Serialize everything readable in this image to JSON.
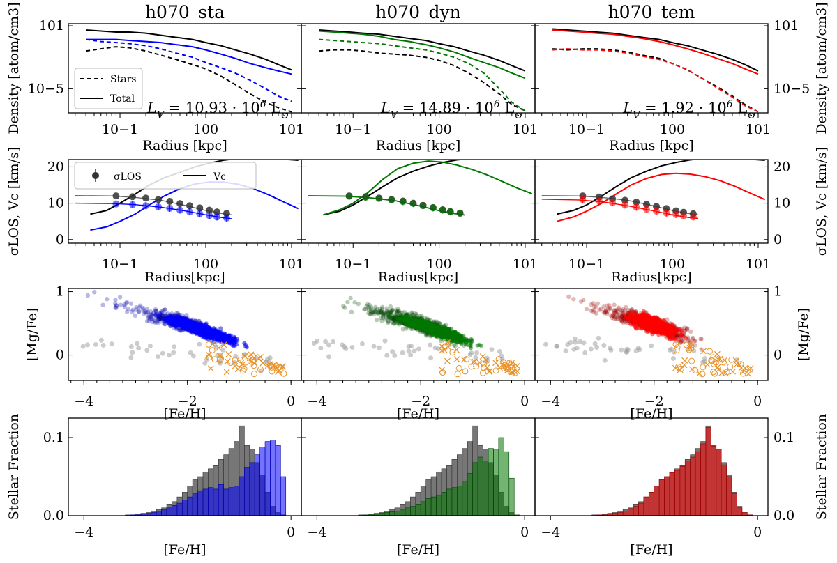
{
  "colors": {
    "sta": "#0000ff",
    "dyn": "#007700",
    "tem": "#ff0000",
    "dwarf_sta": "#0000aa",
    "dwarf_dyn": "#004400",
    "dwarf_tem": "#990000",
    "grey": "#555555",
    "orange": "#e8922a",
    "black": "#000000"
  },
  "columns": [
    {
      "key": "sta",
      "title": "h070_sta",
      "lum_text": "L_V = 10.93 · 10^6 L_⊙",
      "lum_parts": [
        "L",
        "V",
        " = 10.93 · 10",
        "6",
        " L",
        "⊙"
      ]
    },
    {
      "key": "dyn",
      "title": "h070_dyn",
      "lum_text": "L_V = 14.89 · 10^6 L_⊙",
      "lum_parts": [
        "L",
        "V",
        " = 14.89 · 10",
        "6",
        " L",
        "⊙"
      ]
    },
    {
      "key": "tem",
      "title": "h070_tem",
      "lum_text": "L_V = 1.92 · 10^6 L_⊙",
      "lum_parts": [
        "L",
        "V",
        " = 1.92 · 10",
        "6",
        " L",
        "⊙"
      ]
    }
  ],
  "labels": {
    "row1_ylabel": "Density [atom/cm3]",
    "row1_xlabel": "Radius [kpc]",
    "row2_ylabel": "σLOS, Vc [km/s]",
    "row2_xlabel": "Radius[kpc]",
    "row3_ylabel": "[Mg/Fe]",
    "row3_xlabel": "[Fe/H]",
    "row4_ylabel": "Stellar Fraction",
    "row4_xlabel": "[Fe/H]"
  },
  "legends": {
    "row1": [
      "Stars",
      "Total"
    ],
    "row2": [
      "σLOS",
      "Vc"
    ]
  },
  "ticks": {
    "row1_x": [
      "10−1",
      "100",
      "101"
    ],
    "row1_y": [
      "101",
      "10−5"
    ],
    "row2_x": [
      "10−1",
      "100",
      "101"
    ],
    "row2_y": [
      "20",
      "10",
      "0"
    ],
    "row3_x": [
      "−4",
      "−2",
      "0"
    ],
    "row3_y": [
      "1",
      "0"
    ],
    "row4_x": [
      "−4",
      "0"
    ],
    "row4_y": [
      "0.1",
      "0.0"
    ]
  },
  "chart_data": {
    "type": "multi-panel",
    "panels": [
      "density_profile",
      "velocity_profile",
      "MgFe_vs_FeH",
      "FeH_histogram"
    ],
    "density": {
      "xscale": "log",
      "xlim": [
        0.025,
        13
      ],
      "ylim_log10": [
        -7.3,
        1.2
      ],
      "x": [
        0.04,
        0.06,
        0.09,
        0.13,
        0.2,
        0.3,
        0.45,
        0.7,
        1.0,
        1.5,
        2.2,
        3.3,
        5,
        7,
        10
      ],
      "stars_dm": {
        "sta": [
          -1.4,
          -1.2,
          -1.0,
          -1.1,
          -1.4,
          -1.8,
          -2.2,
          -2.7,
          -3.1,
          -3.8,
          -4.6,
          -5.5,
          -6.3,
          -6.8,
          -7.2
        ],
        "dyn": [
          -1.4,
          -1.3,
          -1.3,
          -1.4,
          -1.6,
          -1.7,
          -1.8,
          -2.0,
          -2.3,
          -2.8,
          -3.5,
          -4.4,
          -5.5,
          -6.5,
          -7.1
        ],
        "tem": [
          -1.2,
          -1.3,
          -1.2,
          -1.2,
          -1.3,
          -1.5,
          -1.8,
          -2.1,
          -2.6,
          -3.2,
          -4.0,
          -4.8,
          -5.7,
          -6.5,
          -7.2
        ]
      },
      "stars_col": {
        "sta": [
          -0.3,
          -0.5,
          -0.6,
          -0.7,
          -0.9,
          -1.2,
          -1.6,
          -2.0,
          -2.5,
          -3.0,
          -3.5,
          -4.2,
          -5.0,
          -5.7,
          -6.2
        ],
        "dyn": [
          -0.3,
          -0.4,
          -0.5,
          -0.6,
          -0.7,
          -0.9,
          -1.1,
          -1.3,
          -1.6,
          -2.0,
          -2.6,
          -3.5,
          -5.0,
          -6.3,
          -7.1
        ],
        "tem": [
          -1.3,
          -1.2,
          -1.3,
          -1.3,
          -1.4,
          -1.6,
          -1.9,
          -2.2,
          -2.6,
          -3.2,
          -4.0,
          -4.9,
          -5.8,
          -6.6,
          -7.2
        ]
      },
      "total_dm": {
        "sta": [
          0.6,
          0.5,
          0.4,
          0.4,
          0.3,
          0.1,
          -0.1,
          -0.3,
          -0.6,
          -0.9,
          -1.3,
          -1.7,
          -2.2,
          -2.7,
          -3.2
        ],
        "dyn": [
          0.6,
          0.5,
          0.4,
          0.3,
          0.2,
          0.0,
          -0.2,
          -0.4,
          -0.7,
          -1.0,
          -1.4,
          -1.8,
          -2.3,
          -2.8,
          -3.3
        ],
        "tem": [
          0.7,
          0.6,
          0.5,
          0.4,
          0.3,
          0.1,
          -0.1,
          -0.3,
          -0.6,
          -0.9,
          -1.3,
          -1.7,
          -2.2,
          -2.7,
          -3.3
        ]
      },
      "total_col": {
        "sta": [
          -0.3,
          -0.3,
          -0.3,
          -0.4,
          -0.5,
          -0.6,
          -0.8,
          -1.0,
          -1.3,
          -1.7,
          -2.1,
          -2.6,
          -3.0,
          -3.3,
          -3.6
        ],
        "dyn": [
          0.5,
          0.4,
          0.3,
          0.2,
          0.0,
          -0.3,
          -0.5,
          -0.8,
          -1.1,
          -1.5,
          -2.0,
          -2.5,
          -3.0,
          -3.5,
          -4.0
        ],
        "tem": [
          0.6,
          0.5,
          0.4,
          0.3,
          0.2,
          0.0,
          -0.2,
          -0.5,
          -0.8,
          -1.2,
          -1.6,
          -2.1,
          -2.6,
          -3.1,
          -3.6
        ]
      }
    },
    "velocity": {
      "xscale": "log",
      "xlim": [
        0.025,
        13
      ],
      "ylim": [
        -1,
        22
      ],
      "x": [
        0.045,
        0.07,
        0.1,
        0.15,
        0.22,
        0.33,
        0.5,
        0.75,
        1.1,
        1.6,
        2.4,
        3.6,
        5.4,
        8,
        12
      ],
      "vc_dm": {
        "sta": [
          7,
          8,
          10,
          12.5,
          15,
          17,
          18.5,
          20,
          21,
          21.8,
          22.3,
          22.4,
          22.3,
          22.1,
          21.8
        ],
        "dyn": [
          6.8,
          7.8,
          9.5,
          12,
          14.5,
          17,
          18.8,
          20.2,
          21.2,
          21.9,
          22.3,
          22.4,
          22.3,
          22.2,
          22
        ],
        "tem": [
          7,
          8,
          9.5,
          12,
          14.5,
          17,
          18.8,
          20.3,
          21.2,
          21.9,
          22.3,
          22.4,
          22.3,
          22.1,
          21.8
        ]
      },
      "vc_col": {
        "sta": [
          2.6,
          3.5,
          5,
          7,
          9.5,
          12,
          14,
          15.3,
          15.8,
          15.8,
          15.2,
          14,
          12.3,
          10.4,
          8.5
        ],
        "dyn": [
          6.8,
          8.2,
          10,
          13,
          16.5,
          19.5,
          21,
          21.6,
          21.3,
          20.5,
          19.3,
          17.8,
          16,
          14.2,
          12.6
        ],
        "tem": [
          5,
          6.2,
          7.8,
          10,
          12.5,
          15,
          16.8,
          17.9,
          18.2,
          18,
          17.3,
          16.2,
          14.6,
          12.8,
          11
        ]
      },
      "sigma_points_x": [
        0.09,
        0.14,
        0.2,
        0.28,
        0.38,
        0.5,
        0.65,
        0.85,
        1.1,
        1.35,
        1.75
      ],
      "sigma_dm": {
        "sta": [
          12.0,
          11.8,
          11.4,
          11.0,
          10.5,
          9.9,
          9.3,
          8.7,
          8.1,
          7.6,
          7.2
        ],
        "dyn": [
          12.0,
          11.8,
          11.4,
          11.0,
          10.6,
          10.0,
          9.4,
          8.8,
          8.2,
          7.7,
          7.3
        ],
        "tem": [
          12.0,
          11.7,
          11.2,
          10.8,
          10.3,
          9.7,
          9.1,
          8.5,
          7.9,
          7.5,
          7.1
        ]
      },
      "sigma_col": {
        "sta": [
          9.8,
          9.6,
          9.3,
          9.0,
          8.6,
          8.1,
          7.6,
          7.1,
          6.6,
          6.2,
          5.9
        ],
        "dyn": [
          11.9,
          11.6,
          11.3,
          10.9,
          10.4,
          9.9,
          9.3,
          8.7,
          8.1,
          7.6,
          7.2
        ],
        "tem": [
          11.0,
          10.6,
          10.1,
          9.5,
          8.9,
          8.3,
          7.8,
          7.3,
          6.9,
          6.5,
          6.2
        ]
      },
      "sigma_model_x": [
        0.03,
        0.08,
        0.15,
        0.3,
        0.6,
        1.0,
        1.5,
        2.0
      ],
      "sigma_model_dm": [
        12.1,
        12.0,
        11.6,
        10.8,
        9.3,
        8.0,
        7.2,
        6.8
      ],
      "sigma_model_col": {
        "sta": [
          10.0,
          9.9,
          9.6,
          8.9,
          7.8,
          6.8,
          6.1,
          5.7
        ],
        "dyn": [
          12.0,
          11.9,
          11.5,
          10.7,
          9.2,
          7.9,
          7.1,
          6.7
        ],
        "tem": [
          11.1,
          10.9,
          10.4,
          9.3,
          7.9,
          6.8,
          6.1,
          5.8
        ]
      }
    },
    "chem": {
      "xlim": [
        -4.3,
        0.2
      ],
      "ylim": [
        -0.4,
        1.05
      ],
      "trend_feh": [
        -4.0,
        -3.5,
        -3.0,
        -2.5,
        -2.0,
        -1.5,
        -1.0,
        -0.5,
        -0.2
      ],
      "trend_mgfe": [
        0.95,
        0.85,
        0.72,
        0.6,
        0.48,
        0.33,
        0.2,
        0.16,
        0.15
      ],
      "orange_feh_range": [
        -1.6,
        -0.1
      ],
      "orange_mgfe_range": [
        -0.3,
        0.25
      ]
    },
    "hist": {
      "xlim": [
        -4.3,
        0.2
      ],
      "ylim": [
        0,
        0.125
      ],
      "bin_edges_start": -4.0,
      "bin_width": 0.1,
      "dm": [
        0,
        0,
        0,
        0,
        0,
        0,
        0,
        0,
        0.001,
        0.001,
        0.002,
        0.003,
        0.004,
        0.006,
        0.008,
        0.01,
        0.014,
        0.018,
        0.024,
        0.03,
        0.038,
        0.046,
        0.05,
        0.056,
        0.06,
        0.064,
        0.072,
        0.078,
        0.086,
        0.095,
        0.115,
        0.09,
        0.085,
        0.068,
        0.052,
        0.03,
        0.012,
        0.004,
        0.001,
        0
      ],
      "col": {
        "sta": [
          0,
          0,
          0,
          0,
          0,
          0,
          0,
          0,
          0,
          0.001,
          0.001,
          0.002,
          0.003,
          0.004,
          0.006,
          0.008,
          0.01,
          0.013,
          0.016,
          0.02,
          0.024,
          0.028,
          0.032,
          0.034,
          0.036,
          0.034,
          0.04,
          0.034,
          0.036,
          0.038,
          0.05,
          0.062,
          0.068,
          0.078,
          0.088,
          0.095,
          0.097,
          0.09,
          0.05,
          0
        ],
        "dyn": [
          0,
          0,
          0,
          0,
          0,
          0,
          0,
          0,
          0,
          0.001,
          0.001,
          0.002,
          0.003,
          0.004,
          0.005,
          0.006,
          0.008,
          0.01,
          0.012,
          0.014,
          0.018,
          0.022,
          0.024,
          0.026,
          0.03,
          0.034,
          0.036,
          0.038,
          0.044,
          0.054,
          0.068,
          0.075,
          0.07,
          0.086,
          0.085,
          0.1,
          0.082,
          0.048,
          0,
          0
        ],
        "tem": [
          0,
          0,
          0,
          0,
          0,
          0,
          0,
          0,
          0,
          0.001,
          0.001,
          0.002,
          0.003,
          0.004,
          0.006,
          0.009,
          0.012,
          0.016,
          0.024,
          0.03,
          0.038,
          0.046,
          0.05,
          0.055,
          0.058,
          0.063,
          0.07,
          0.075,
          0.082,
          0.092,
          0.113,
          0.089,
          0.085,
          0.065,
          0.05,
          0.028,
          0.01,
          0.004,
          0.001,
          0
        ]
      }
    }
  }
}
